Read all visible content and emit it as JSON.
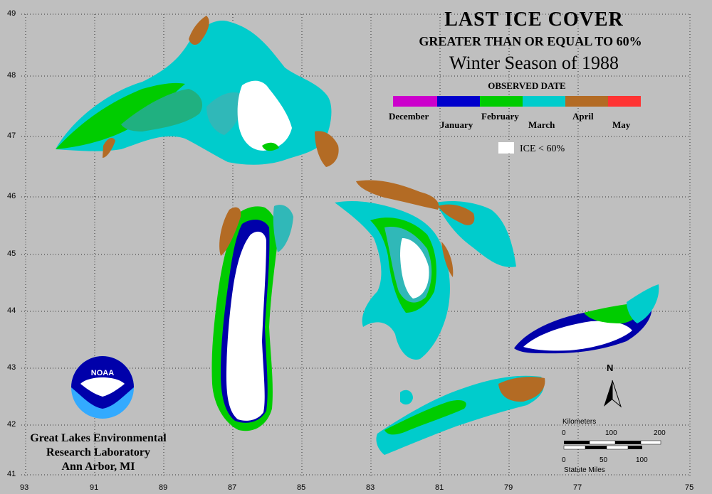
{
  "title": {
    "line1": "LAST ICE COVER",
    "line2": "GREATER THAN OR EQUAL TO 60%",
    "line3": "Winter Season of 1988"
  },
  "legend": {
    "heading": "OBSERVED DATE",
    "months": [
      "December",
      "January",
      "February",
      "March",
      "April",
      "May"
    ],
    "colors": {
      "December": "#cc00cc",
      "January": "#0000cc",
      "February": "#00cc00",
      "March": "#00cccc",
      "April": "#b36b24",
      "May": "#ff3333"
    },
    "ice_label": "ICE < 60%",
    "ice_color": "#ffffff"
  },
  "axes": {
    "longitude_ticks": [
      "93",
      "91",
      "89",
      "87",
      "85",
      "83",
      "81",
      "79",
      "77",
      "75"
    ],
    "latitude_ticks": [
      "49",
      "48",
      "47",
      "46",
      "45",
      "44",
      "43",
      "42",
      "41"
    ]
  },
  "logo": {
    "text": "NOAA"
  },
  "credit": {
    "line1": "Great Lakes Environmental",
    "line2": "Research Laboratory",
    "line3": "Ann Arbor, MI"
  },
  "north_label": "N",
  "scale": {
    "km_label": "Kilometers",
    "km_ticks": [
      "0",
      "100",
      "200"
    ],
    "mi_label": "Statute Miles",
    "mi_ticks": [
      "0",
      "50",
      "100"
    ]
  }
}
